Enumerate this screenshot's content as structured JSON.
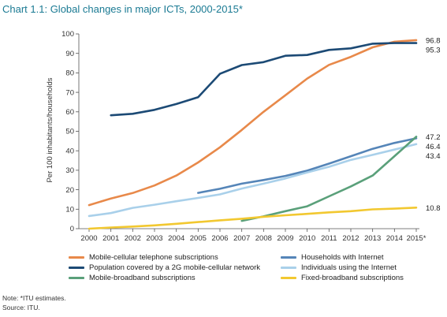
{
  "title": "Chart 1.1:  Global changes in major ICTs, 2000-2015*",
  "note": "Note: *ITU estimates.",
  "source": "Source: ITU.",
  "chart_data": {
    "type": "line",
    "ylabel": "Per 100 inhabitants/households",
    "xlabel": "",
    "ylim": [
      0,
      100
    ],
    "yticks": [
      0,
      10,
      20,
      30,
      40,
      50,
      60,
      70,
      80,
      90,
      100
    ],
    "categories": [
      "2000",
      "2001",
      "2002",
      "2003",
      "2004",
      "2005",
      "2006",
      "2007",
      "2008",
      "2009",
      "2010",
      "2011",
      "2012",
      "2013",
      "2014",
      "2015*"
    ],
    "grid": false,
    "legend_position": "bottom",
    "series": [
      {
        "name": "Mobile-cellular telephone subscriptions",
        "color": "#e8894a",
        "values": [
          12.1,
          15.5,
          18.3,
          22.2,
          27.3,
          34.0,
          41.8,
          50.7,
          60.0,
          68.5,
          77.1,
          84.1,
          88.2,
          93.1,
          96.0,
          96.8
        ],
        "end_label": "96.8"
      },
      {
        "name": "Population covered by a 2G mobile-cellular network",
        "color": "#1c4a75",
        "values": [
          null,
          58.2,
          59.0,
          61.0,
          64.0,
          67.5,
          79.5,
          84.0,
          85.5,
          88.8,
          89.2,
          91.8,
          92.6,
          95.0,
          95.3,
          95.3
        ],
        "end_label": "95.3"
      },
      {
        "name": "Households with Internet",
        "color": "#5585b8",
        "values": [
          null,
          null,
          null,
          null,
          null,
          18.4,
          20.5,
          23.1,
          25.0,
          27.1,
          29.8,
          33.4,
          37.2,
          41.0,
          44.0,
          46.4
        ],
        "end_label": "46.4"
      },
      {
        "name": "Individuals using the Internet",
        "color": "#a9d0ea",
        "values": [
          6.5,
          8.0,
          10.7,
          12.3,
          14.1,
          15.8,
          17.6,
          20.6,
          23.1,
          25.8,
          28.9,
          31.8,
          35.3,
          37.9,
          40.6,
          43.4
        ],
        "end_label": "43.4"
      },
      {
        "name": "Mobile-broadband subscriptions",
        "color": "#5aa07a",
        "values": [
          null,
          null,
          null,
          null,
          null,
          null,
          null,
          4.0,
          6.3,
          9.0,
          11.5,
          16.6,
          21.7,
          27.3,
          37.2,
          47.2
        ],
        "end_label": "47.2"
      },
      {
        "name": "Fixed-broadband subscriptions",
        "color": "#f2c830",
        "values": [
          0.0,
          0.6,
          1.1,
          1.7,
          2.5,
          3.4,
          4.3,
          5.1,
          6.1,
          6.9,
          7.6,
          8.4,
          9.0,
          9.9,
          10.3,
          10.8
        ],
        "end_label": "10.8"
      }
    ]
  }
}
